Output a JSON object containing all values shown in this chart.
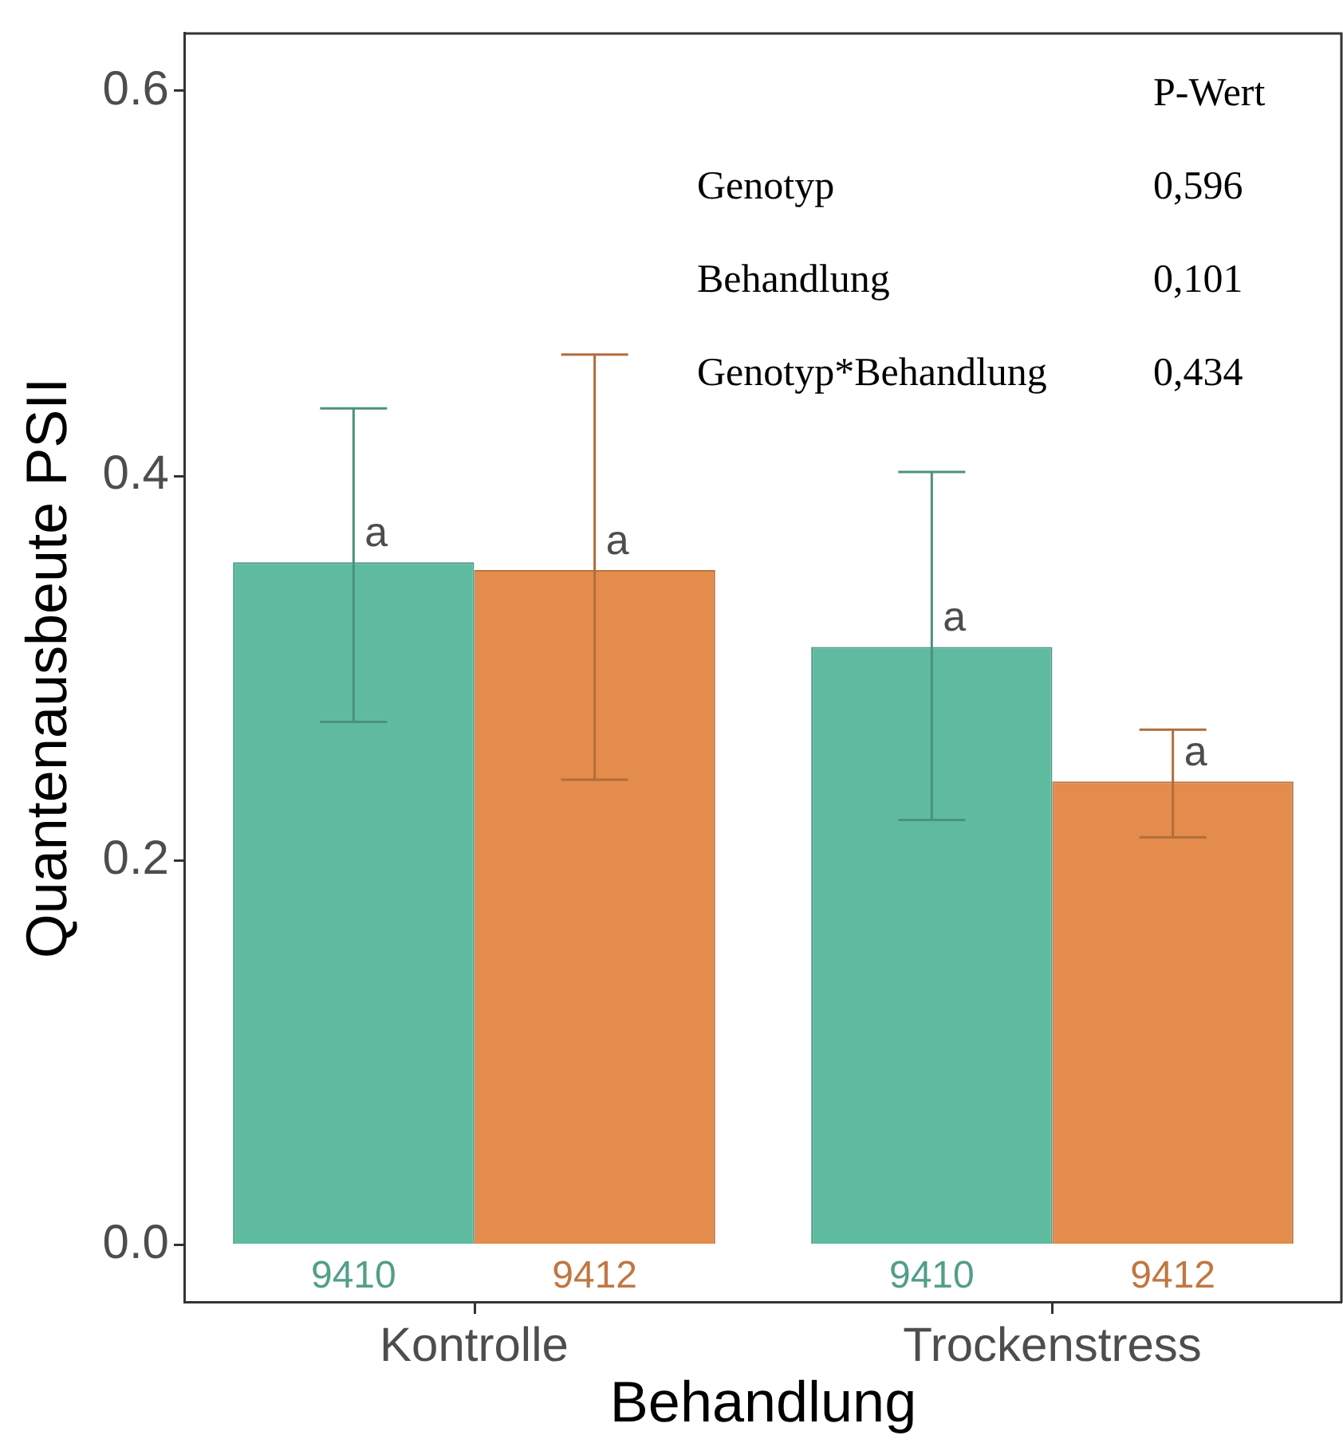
{
  "chart_data": {
    "type": "bar",
    "xlabel": "Behandlung",
    "ylabel": "Quantenausbeute PSII",
    "categories": [
      "Kontrolle",
      "Trockenstress"
    ],
    "series": [
      {
        "name": "9410",
        "color": "#5fbba0",
        "values": [
          0.355,
          0.311
        ],
        "errors": [
          [
            0.272,
            0.435
          ],
          [
            0.221,
            0.402
          ]
        ],
        "value_labels": [
          "a",
          "a"
        ]
      },
      {
        "name": "9412",
        "color": "#e38c4c",
        "values": [
          0.351,
          0.241
        ],
        "errors": [
          [
            0.242,
            0.463
          ],
          [
            0.212,
            0.268
          ]
        ],
        "value_labels": [
          "a",
          "a"
        ]
      }
    ],
    "ylim": [
      -0.03,
      0.63
    ],
    "yticks": [
      {
        "value": 0,
        "label": "0.0"
      },
      0.2,
      0.4,
      0.6
    ],
    "grid": false,
    "legend": false,
    "annotations": [
      "P-Wert",
      "Genotyp",
      "0,596",
      "Behandlung",
      "0,101",
      "Genotyp*Behandlung",
      "0,434"
    ]
  }
}
